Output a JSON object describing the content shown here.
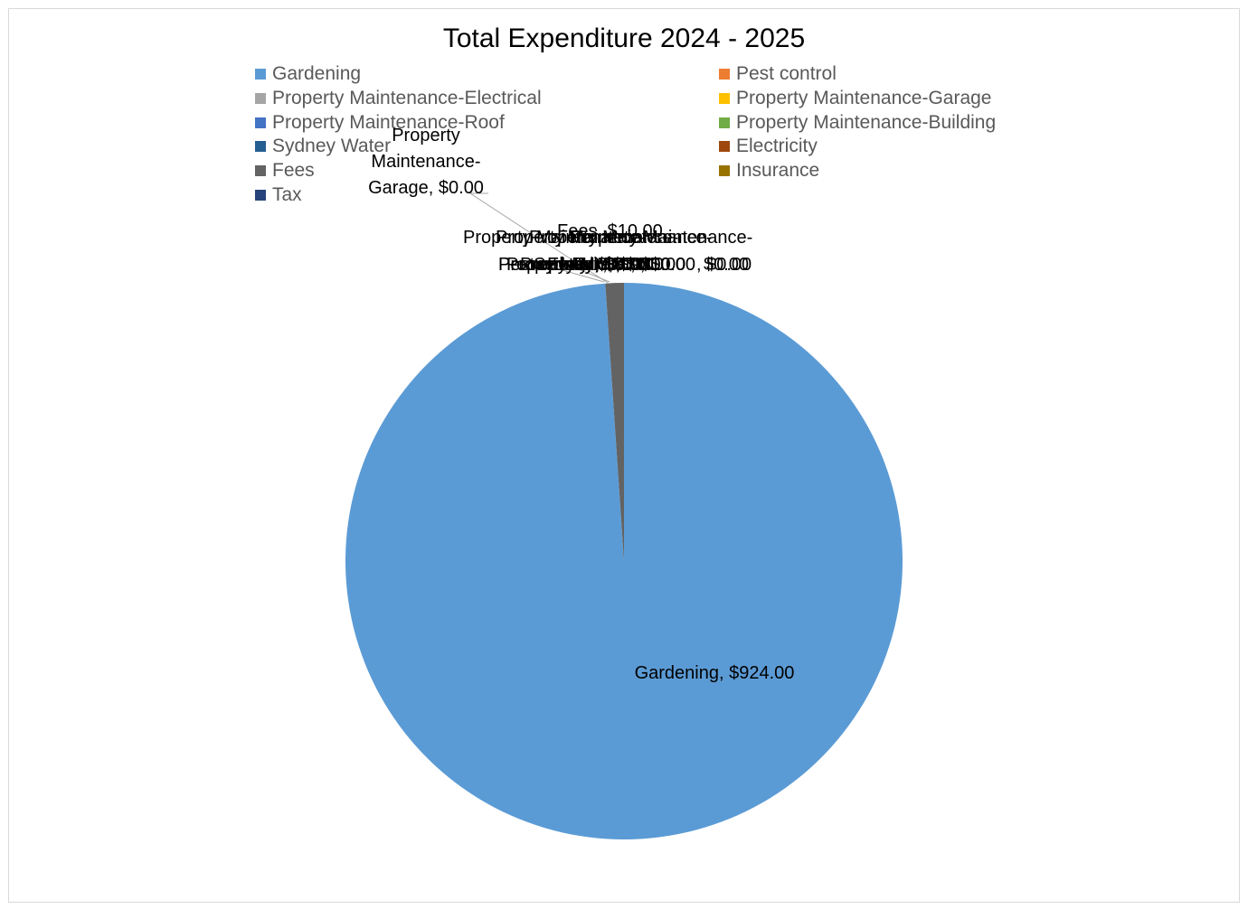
{
  "chart_data": {
    "type": "pie",
    "title": "Total Expenditure 2024 - 2025",
    "legend_position": "top",
    "slices": [
      {
        "name": "Gardening",
        "value": 924.0,
        "label": "Gardening, $924.00",
        "color": "#5b9bd5"
      },
      {
        "name": "Pest control",
        "value": 0.0,
        "label": "Pest control, $0.00",
        "color": "#ed7d31"
      },
      {
        "name": "Property Maintenance-Electrical",
        "value": 0.0,
        "label": "Property Maintenance-Electrical, $0.00",
        "color": "#a5a5a5"
      },
      {
        "name": "Property Maintenance-Garage",
        "value": 0.0,
        "label": "Property Maintenance-Garage, $0.00",
        "color": "#ffc000"
      },
      {
        "name": "Property Maintenance-Roof",
        "value": 0.0,
        "label": "Property Maintenance-Roof, $0.00",
        "color": "#4472c4"
      },
      {
        "name": "Property Maintenance-Building",
        "value": 0.0,
        "label": "Property Maintenance-Building, $0.00",
        "color": "#70ad47"
      },
      {
        "name": "Sydney Water",
        "value": 0.0,
        "label": "Sydney Water, $0.00",
        "color": "#255e91"
      },
      {
        "name": "Electricity",
        "value": 0.0,
        "label": "Electricity, $0.00",
        "color": "#9e480e"
      },
      {
        "name": "Fees",
        "value": 10.0,
        "label": "Fees, $10.00",
        "color": "#636363"
      },
      {
        "name": "Insurance",
        "value": 0.0,
        "label": "Insurance, $0.00",
        "color": "#997300"
      },
      {
        "name": "Tax",
        "value": 0.0,
        "label": "Tax, $0.00",
        "color": "#264478"
      }
    ],
    "callouts": {
      "garage_lines": [
        "Property",
        "Maintenance-",
        "Garage, $0.00"
      ],
      "upper_lines": [
        "Property Maintenance-",
        "Fees, $10.00"
      ],
      "lower_line": "Pest control, $0.00"
    }
  }
}
